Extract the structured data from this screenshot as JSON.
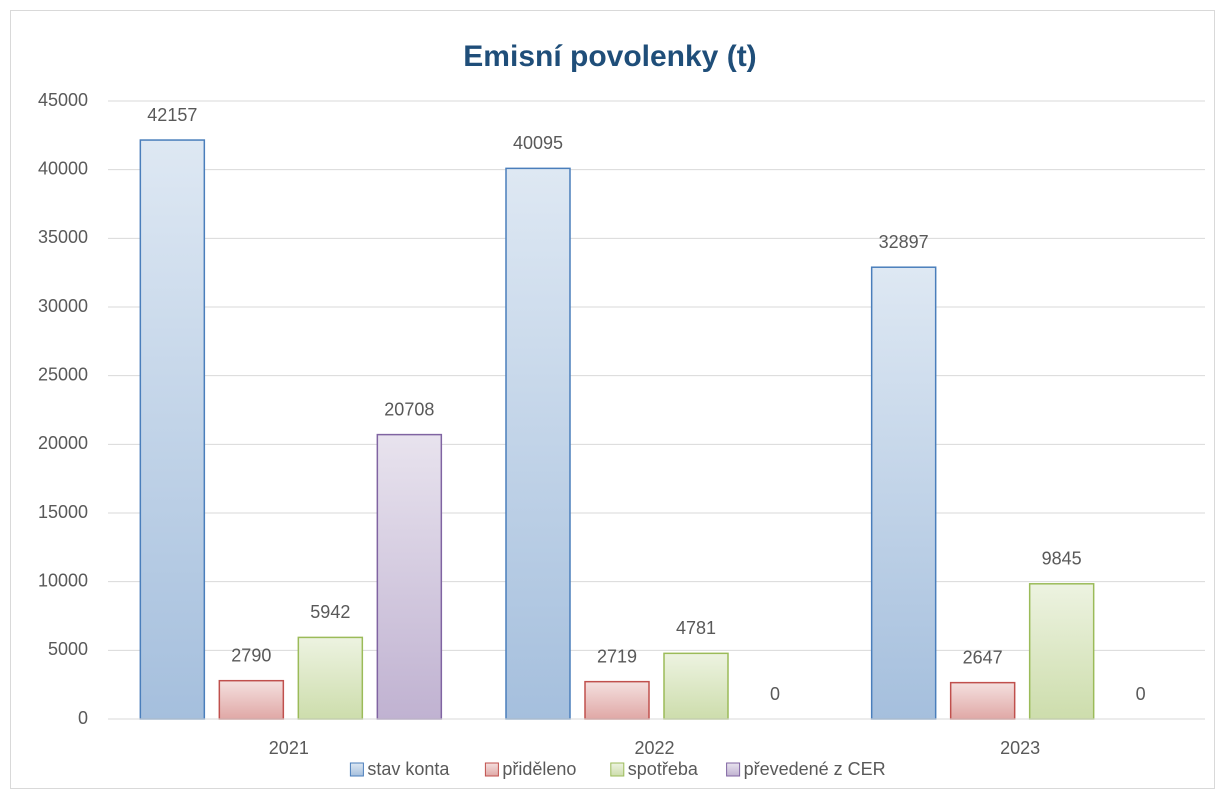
{
  "chart_data": {
    "type": "bar",
    "title": "Emisní povolenky (t)",
    "categories": [
      "2021",
      "2022",
      "2023"
    ],
    "series": [
      {
        "name": "stav konta",
        "color": "#4a7ebb",
        "values": [
          42157,
          40095,
          32897
        ]
      },
      {
        "name": "přiděleno",
        "color": "#c0504d",
        "values": [
          2790,
          2719,
          2647
        ]
      },
      {
        "name": "spotřeba",
        "color": "#9bbb59",
        "values": [
          5942,
          4781,
          9845
        ]
      },
      {
        "name": "převedené z CER",
        "color": "#8064a2",
        "values": [
          20708,
          0,
          0
        ]
      }
    ],
    "ylim": [
      0,
      45000
    ],
    "yticks": [
      0,
      5000,
      10000,
      15000,
      20000,
      25000,
      30000,
      35000,
      40000,
      45000
    ],
    "grid": true,
    "legend": "bottom"
  }
}
